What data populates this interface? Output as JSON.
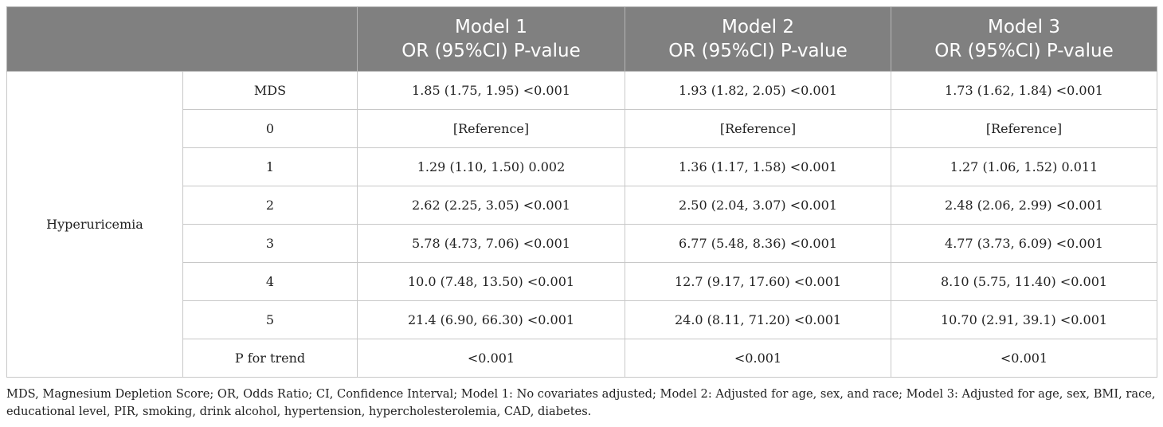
{
  "table": {
    "header": {
      "empty": "",
      "columns": [
        {
          "line1": "Model 1",
          "line2": "OR (95%CI) P-value"
        },
        {
          "line1": "Model 2",
          "line2": "OR (95%CI) P-value"
        },
        {
          "line1": "Model 3",
          "line2": "OR (95%CI) P-value"
        }
      ]
    },
    "group_label": "Hyperuricemia",
    "rows": [
      {
        "label": "MDS",
        "m1": "1.85 (1.75, 1.95) <0.001",
        "m2": "1.93 (1.82, 2.05) <0.001",
        "m3": "1.73 (1.62, 1.84) <0.001"
      },
      {
        "label": "0",
        "m1": "[Reference]",
        "m2": "[Reference]",
        "m3": "[Reference]"
      },
      {
        "label": "1",
        "m1": "1.29 (1.10, 1.50) 0.002",
        "m2": "1.36 (1.17, 1.58) <0.001",
        "m3": "1.27 (1.06, 1.52) 0.011"
      },
      {
        "label": "2",
        "m1": "2.62 (2.25, 3.05) <0.001",
        "m2": "2.50 (2.04, 3.07) <0.001",
        "m3": "2.48 (2.06, 2.99) <0.001"
      },
      {
        "label": "3",
        "m1": "5.78 (4.73, 7.06) <0.001",
        "m2": "6.77 (5.48, 8.36) <0.001",
        "m3": "4.77 (3.73, 6.09) <0.001"
      },
      {
        "label": "4",
        "m1": "10.0 (7.48, 13.50) <0.001",
        "m2": "12.7 (9.17, 17.60) <0.001",
        "m3": "8.10 (5.75, 11.40) <0.001"
      },
      {
        "label": "5",
        "m1": "21.4 (6.90, 66.30) <0.001",
        "m2": "24.0 (8.11, 71.20) <0.001",
        "m3": "10.70 (2.91, 39.1) <0.001"
      },
      {
        "label": "P for trend",
        "m1": "<0.001",
        "m2": "<0.001",
        "m3": "<0.001"
      }
    ]
  },
  "footnote": "MDS, Magnesium Depletion Score; OR, Odds Ratio; CI, Confidence Interval; Model 1: No covariates adjusted; Model 2: Adjusted for age, sex, and race; Model 3: Adjusted for age, sex, BMI, race, educational level, PIR, smoking, drink alcohol, hypertension, hypercholesterolemia, CAD, diabetes.",
  "colors": {
    "header_bg": "#808080",
    "header_text": "#ffffff",
    "border": "#c8c8c8"
  }
}
